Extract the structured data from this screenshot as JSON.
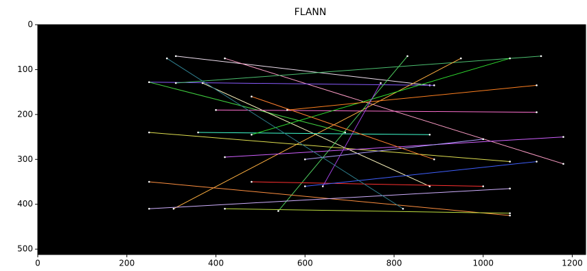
{
  "chart_data": {
    "type": "image",
    "title": "FLANN",
    "xlim": [
      0,
      1230
    ],
    "ylim": [
      512,
      0
    ],
    "xticks": [
      0,
      200,
      400,
      600,
      800,
      1000,
      1200
    ],
    "yticks": [
      0,
      100,
      200,
      300,
      400,
      500
    ],
    "background": "#000000",
    "lines": [
      {
        "x": [
          310,
          880
        ],
        "y": [
          70,
          135
        ],
        "color": "#f0e0f0"
      },
      {
        "x": [
          420,
          1180
        ],
        "y": [
          75,
          310
        ],
        "color": "#ff9ec8"
      },
      {
        "x": [
          250,
          890
        ],
        "y": [
          128,
          135
        ],
        "color": "#8a5cff"
      },
      {
        "x": [
          250,
          690
        ],
        "y": [
          128,
          240
        ],
        "color": "#40d040"
      },
      {
        "x": [
          310,
          1130
        ],
        "y": [
          130,
          70
        ],
        "color": "#4cc070"
      },
      {
        "x": [
          370,
          880
        ],
        "y": [
          130,
          360
        ],
        "color": "#fff8c0"
      },
      {
        "x": [
          305,
          950
        ],
        "y": [
          410,
          75
        ],
        "color": "#ffb040"
      },
      {
        "x": [
          540,
          830
        ],
        "y": [
          415,
          70
        ],
        "color": "#50d060"
      },
      {
        "x": [
          250,
          1060
        ],
        "y": [
          240,
          305
        ],
        "color": "#e0e050"
      },
      {
        "x": [
          360,
          880
        ],
        "y": [
          240,
          245
        ],
        "color": "#40ffd0"
      },
      {
        "x": [
          420,
          1180
        ],
        "y": [
          295,
          250
        ],
        "color": "#d060ff"
      },
      {
        "x": [
          250,
          1060
        ],
        "y": [
          350,
          425
        ],
        "color": "#ff9040"
      },
      {
        "x": [
          480,
          1000
        ],
        "y": [
          350,
          360
        ],
        "color": "#ff3030"
      },
      {
        "x": [
          250,
          1060
        ],
        "y": [
          410,
          365
        ],
        "color": "#d0b0ff"
      },
      {
        "x": [
          420,
          1060
        ],
        "y": [
          410,
          420
        ],
        "color": "#c0e040"
      },
      {
        "x": [
          600,
          1120
        ],
        "y": [
          360,
          305
        ],
        "color": "#4060ff"
      },
      {
        "x": [
          400,
          1120
        ],
        "y": [
          190,
          195
        ],
        "color": "#ff70d0"
      },
      {
        "x": [
          480,
          1060
        ],
        "y": [
          245,
          75
        ],
        "color": "#30e030"
      },
      {
        "x": [
          600,
          1000
        ],
        "y": [
          300,
          255
        ],
        "color": "#b0a0ff"
      },
      {
        "x": [
          560,
          1120
        ],
        "y": [
          190,
          135
        ],
        "color": "#ff8020"
      },
      {
        "x": [
          290,
          820
        ],
        "y": [
          75,
          410
        ],
        "color": "#308090"
      },
      {
        "x": [
          770,
          640
        ],
        "y": [
          130,
          360
        ],
        "color": "#a040e0"
      },
      {
        "x": [
          480,
          890
        ],
        "y": [
          160,
          300
        ],
        "color": "#ff8030"
      }
    ]
  }
}
